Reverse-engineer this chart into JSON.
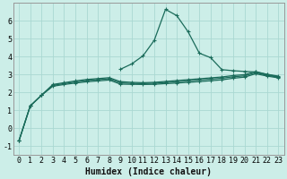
{
  "xlabel": "Humidex (Indice chaleur)",
  "bg_color": "#cceee8",
  "grid_color": "#aad8d2",
  "line_color": "#1a6b5a",
  "x_values": [
    0,
    1,
    2,
    3,
    4,
    5,
    6,
    7,
    8,
    9,
    10,
    11,
    12,
    13,
    14,
    15,
    16,
    17,
    18,
    19,
    20,
    21,
    22,
    23
  ],
  "line1": [
    -0.7,
    1.25,
    1.85,
    2.35,
    2.45,
    2.53,
    2.6,
    2.65,
    2.7,
    2.47,
    2.46,
    2.45,
    2.46,
    2.5,
    2.53,
    2.57,
    2.61,
    2.66,
    2.71,
    2.8,
    2.86,
    3.05,
    2.92,
    2.82
  ],
  "line2": [
    -0.7,
    1.25,
    1.85,
    2.4,
    2.5,
    2.59,
    2.67,
    2.72,
    2.77,
    2.54,
    2.51,
    2.5,
    2.52,
    2.56,
    2.6,
    2.65,
    2.7,
    2.75,
    2.8,
    2.88,
    2.93,
    3.11,
    2.96,
    2.86
  ],
  "line3": [
    -0.7,
    1.25,
    1.85,
    2.45,
    2.55,
    2.65,
    2.73,
    2.78,
    2.83,
    2.61,
    2.57,
    2.55,
    2.57,
    2.62,
    2.67,
    2.72,
    2.77,
    2.82,
    2.87,
    2.95,
    3.0,
    3.17,
    3.02,
    2.92
  ],
  "spike_line_x": [
    9,
    10,
    11,
    12,
    13,
    14,
    15,
    16,
    17,
    18,
    19,
    20,
    21,
    22,
    23
  ],
  "spike_line_y": [
    3.3,
    3.6,
    4.05,
    4.92,
    6.65,
    6.3,
    5.4,
    4.2,
    3.95,
    3.28,
    3.22,
    3.18,
    3.15,
    3.01,
    2.88
  ],
  "ylim": [
    -1.5,
    7.0
  ],
  "xlim": [
    -0.5,
    23.5
  ],
  "yticks": [
    -1,
    0,
    1,
    2,
    3,
    4,
    5,
    6
  ],
  "xticks": [
    0,
    1,
    2,
    3,
    4,
    5,
    6,
    7,
    8,
    9,
    10,
    11,
    12,
    13,
    14,
    15,
    16,
    17,
    18,
    19,
    20,
    21,
    22,
    23
  ],
  "xtick_labels": [
    "0",
    "1",
    "2",
    "3",
    "4",
    "5",
    "6",
    "7",
    "8",
    "9",
    "10",
    "11",
    "12",
    "13",
    "14",
    "15",
    "16",
    "17",
    "18",
    "19",
    "20",
    "21",
    "22",
    "23"
  ],
  "label_fontsize": 7,
  "tick_fontsize": 6
}
